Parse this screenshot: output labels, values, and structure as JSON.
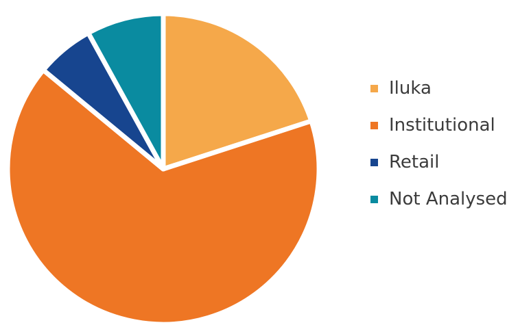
{
  "chart_data": {
    "type": "pie",
    "series": [
      {
        "name": "",
        "slices": [
          {
            "label": "Iluka",
            "value": 20,
            "color": "#F5A84A"
          },
          {
            "label": "Institutional",
            "value": 66,
            "color": "#EE7624"
          },
          {
            "label": "Retail",
            "value": 6,
            "color": "#17458F"
          },
          {
            "label": "Not Analysed",
            "value": 8,
            "color": "#0A8BA0"
          }
        ]
      }
    ],
    "legend_position": "right",
    "separator_color": "#FFFFFF"
  },
  "legend": {
    "items": [
      {
        "label": "Iluka",
        "color": "#F5A84A"
      },
      {
        "label": "Institutional",
        "color": "#EE7624"
      },
      {
        "label": "Retail",
        "color": "#17458F"
      },
      {
        "label": "Not Analysed",
        "color": "#0A8BA0"
      }
    ]
  }
}
